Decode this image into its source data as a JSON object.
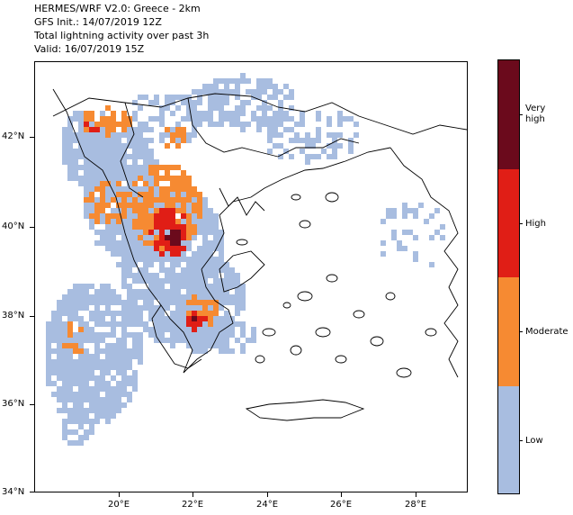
{
  "header": {
    "line1": "HERMES/WRF V2.0: Greece - 2km",
    "line2": "GFS Init.: 14/07/2019 12Z",
    "line3": "Total lightning activity over past 3h",
    "line4": "Valid: 16/07/2019 15Z"
  },
  "axes": {
    "lat_labels": [
      "42°N",
      "40°N",
      "38°N",
      "36°N",
      "34°N"
    ],
    "lon_labels": [
      "20°E",
      "22°E",
      "24°E",
      "26°E",
      "28°E"
    ]
  },
  "legend": {
    "categories": [
      {
        "label": "Very high",
        "color": "#6b0a1c"
      },
      {
        "label": "High",
        "color": "#e01e16"
      },
      {
        "label": "Moderate",
        "color": "#f68a32"
      },
      {
        "label": "Low",
        "color": "#a8bde0"
      }
    ]
  },
  "colors": {
    "low": "#a8bde0",
    "moderate": "#f68a32",
    "high": "#e01e16",
    "very_high": "#6b0a1c",
    "coast": "#000000"
  }
}
